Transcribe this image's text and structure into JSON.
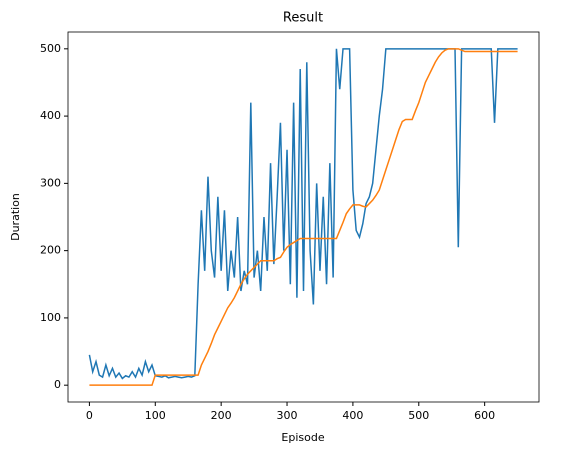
{
  "chart_data": {
    "type": "line",
    "title": "Result",
    "x_label": "Episode",
    "y_label": "Duration",
    "x": [
      0,
      5,
      10,
      15,
      20,
      25,
      30,
      35,
      40,
      45,
      50,
      55,
      60,
      65,
      70,
      75,
      80,
      85,
      90,
      95,
      100,
      105,
      110,
      115,
      120,
      125,
      130,
      135,
      140,
      145,
      150,
      155,
      160,
      165,
      170,
      175,
      180,
      185,
      190,
      195,
      200,
      205,
      210,
      215,
      220,
      225,
      230,
      235,
      240,
      245,
      250,
      255,
      260,
      265,
      270,
      275,
      280,
      285,
      290,
      295,
      300,
      305,
      310,
      315,
      320,
      325,
      330,
      335,
      340,
      345,
      350,
      355,
      360,
      365,
      370,
      375,
      380,
      385,
      390,
      395,
      400,
      405,
      410,
      415,
      420,
      425,
      430,
      435,
      440,
      445,
      450,
      455,
      460,
      465,
      470,
      475,
      480,
      485,
      490,
      495,
      500,
      505,
      510,
      515,
      520,
      525,
      530,
      535,
      540,
      545,
      550,
      555,
      560,
      565,
      570,
      575,
      580,
      585,
      590,
      595,
      600,
      605,
      610,
      615,
      620,
      625,
      630,
      635,
      640,
      645,
      650
    ],
    "series": [
      {
        "color": "#1f77b4",
        "values": [
          45,
          20,
          35,
          15,
          12,
          30,
          14,
          25,
          12,
          18,
          10,
          14,
          12,
          20,
          12,
          25,
          15,
          35,
          20,
          30,
          14,
          13,
          12,
          14,
          11,
          12,
          13,
          12,
          11,
          12,
          13,
          12,
          14,
          150,
          260,
          170,
          310,
          200,
          160,
          280,
          170,
          260,
          140,
          200,
          160,
          250,
          140,
          170,
          150,
          420,
          160,
          200,
          140,
          250,
          170,
          330,
          180,
          280,
          390,
          200,
          350,
          150,
          420,
          130,
          470,
          140,
          480,
          200,
          120,
          300,
          170,
          280,
          150,
          330,
          160,
          500,
          440,
          500,
          500,
          500,
          290,
          230,
          220,
          240,
          270,
          280,
          300,
          350,
          400,
          440,
          500,
          500,
          500,
          500,
          500,
          500,
          500,
          500,
          500,
          500,
          500,
          500,
          500,
          500,
          500,
          500,
          500,
          500,
          500,
          500,
          500,
          500,
          205,
          500,
          500,
          500,
          500,
          500,
          500,
          500,
          500,
          500,
          500,
          390,
          500,
          500,
          500,
          500,
          500,
          500,
          500
        ]
      },
      {
        "color": "#ff7f0e",
        "values": [
          0,
          0,
          0,
          0,
          0,
          0,
          0,
          0,
          0,
          0,
          0,
          0,
          0,
          0,
          0,
          0,
          0,
          0,
          0,
          0,
          15,
          15,
          15,
          15,
          15,
          15,
          15,
          15,
          15,
          15,
          15,
          15,
          15,
          15,
          30,
          40,
          50,
          62,
          75,
          85,
          95,
          105,
          115,
          122,
          130,
          140,
          150,
          158,
          165,
          170,
          175,
          180,
          185,
          185,
          185,
          185,
          185,
          188,
          190,
          198,
          205,
          209,
          212,
          215,
          218,
          218,
          218,
          218,
          218,
          218,
          218,
          218,
          218,
          218,
          218,
          218,
          230,
          242,
          255,
          262,
          268,
          268,
          268,
          266,
          265,
          270,
          275,
          282,
          290,
          305,
          320,
          335,
          350,
          365,
          380,
          392,
          395,
          395,
          395,
          408,
          420,
          435,
          450,
          460,
          470,
          480,
          488,
          494,
          498,
          500,
          500,
          500,
          500,
          498,
          496,
          496,
          496,
          496,
          496,
          496,
          496,
          496,
          496,
          496,
          496,
          496,
          496,
          496,
          496,
          496,
          496
        ]
      }
    ],
    "xlim": [
      -32.5,
      682.5
    ],
    "ylim": [
      -25,
      525
    ],
    "xticks": [
      0,
      100,
      200,
      300,
      400,
      500,
      600
    ],
    "yticks": [
      0,
      100,
      200,
      300,
      400,
      500
    ]
  }
}
